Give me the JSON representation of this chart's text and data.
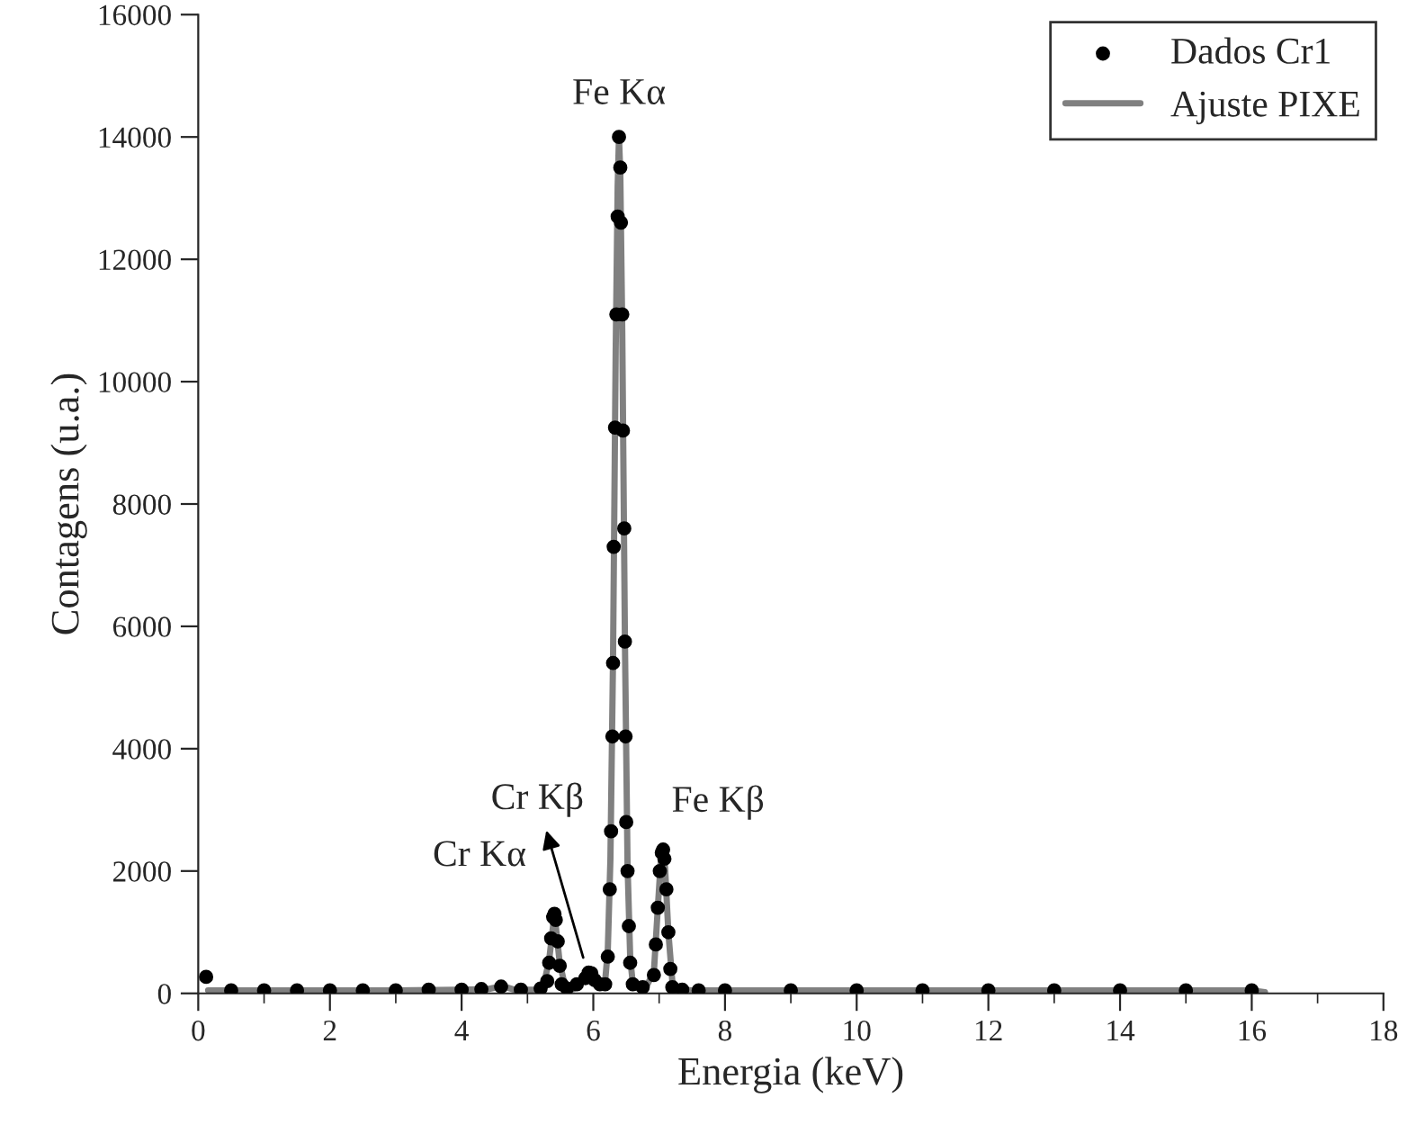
{
  "chart_data": {
    "type": "scatter",
    "xlabel": "Energia (keV)",
    "ylabel": "Contagens (u.a.)",
    "xlim": [
      0,
      18
    ],
    "xticks": [
      0,
      2,
      4,
      6,
      8,
      10,
      12,
      14,
      16,
      18
    ],
    "ylim": [
      0,
      16000
    ],
    "yticks": [
      0,
      2000,
      4000,
      6000,
      8000,
      10000,
      12000,
      14000,
      16000
    ],
    "grid": false,
    "legend": "top right",
    "series": [
      {
        "name": "Dados Cr1",
        "color": "#000000",
        "marker": "circle",
        "x": [
          0.12,
          0.5,
          1.0,
          1.5,
          2.0,
          2.5,
          3.0,
          3.5,
          4.0,
          4.3,
          4.6,
          4.9,
          5.2,
          5.3,
          5.33,
          5.36,
          5.39,
          5.41,
          5.43,
          5.46,
          5.49,
          5.52,
          5.6,
          5.75,
          5.88,
          5.93,
          5.97,
          6.02,
          6.1,
          6.18,
          6.22,
          6.25,
          6.27,
          6.29,
          6.3,
          6.31,
          6.33,
          6.35,
          6.37,
          6.39,
          6.41,
          6.42,
          6.44,
          6.45,
          6.47,
          6.48,
          6.49,
          6.5,
          6.52,
          6.54,
          6.56,
          6.6,
          6.75,
          6.92,
          6.95,
          6.98,
          7.01,
          7.04,
          7.06,
          7.08,
          7.11,
          7.14,
          7.17,
          7.2,
          7.35,
          7.6,
          8.0,
          9.0,
          10.0,
          11.0,
          12.0,
          13.0,
          14.0,
          15.0,
          16.0
        ],
        "values": [
          270,
          50,
          50,
          50,
          50,
          50,
          50,
          60,
          60,
          70,
          110,
          60,
          80,
          200,
          500,
          900,
          1250,
          1300,
          1200,
          850,
          450,
          150,
          80,
          150,
          250,
          340,
          330,
          220,
          150,
          150,
          600,
          1700,
          2650,
          4200,
          5400,
          7300,
          9250,
          11100,
          12700,
          14000,
          13500,
          12600,
          11100,
          9200,
          7600,
          5750,
          4200,
          2800,
          2000,
          1100,
          500,
          150,
          100,
          300,
          800,
          1400,
          2000,
          2300,
          2350,
          2200,
          1700,
          1000,
          400,
          100,
          60,
          50,
          50,
          50,
          50,
          50,
          50,
          50,
          50,
          50,
          50
        ]
      },
      {
        "name": "Ajuste PIXE",
        "type": "line",
        "color": "#808080",
        "line_style": "solid",
        "x": [
          0.15,
          1.0,
          2.0,
          3.0,
          4.0,
          4.4,
          4.62,
          4.8,
          5.1,
          5.25,
          5.33,
          5.41,
          5.49,
          5.57,
          5.7,
          5.8,
          5.91,
          6.0,
          6.1,
          6.18,
          6.22,
          6.26,
          6.3,
          6.34,
          6.37,
          6.39,
          6.41,
          6.44,
          6.48,
          6.52,
          6.56,
          6.6,
          6.68,
          6.8,
          6.92,
          6.98,
          7.03,
          7.06,
          7.09,
          7.14,
          7.2,
          7.3,
          7.5,
          8.0,
          10.0,
          12.0,
          14.0,
          16.0,
          16.2
        ],
        "values": [
          50,
          50,
          50,
          50,
          60,
          70,
          120,
          60,
          60,
          150,
          550,
          1300,
          500,
          120,
          70,
          150,
          350,
          200,
          150,
          200,
          700,
          2200,
          5500,
          10500,
          13200,
          14000,
          13400,
          10800,
          5800,
          2100,
          600,
          150,
          80,
          100,
          350,
          1400,
          2250,
          2350,
          2050,
          1000,
          200,
          60,
          50,
          50,
          50,
          50,
          50,
          50,
          20
        ]
      }
    ],
    "annotations": [
      {
        "text": "Fe Kα",
        "x": 6.39,
        "y": 14000
      },
      {
        "text": "Cr Kα",
        "x": 5.41,
        "y": 1300
      },
      {
        "text": "Cr Kβ",
        "x": 5.91,
        "y": 350
      },
      {
        "text": "Fe Kβ",
        "x": 7.06,
        "y": 2350
      }
    ]
  }
}
